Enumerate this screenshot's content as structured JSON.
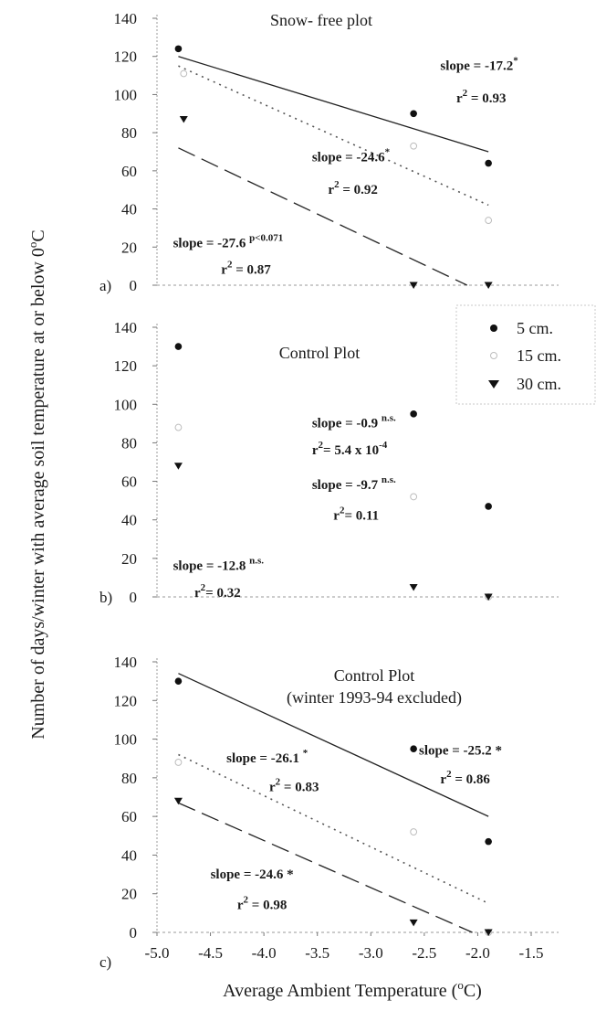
{
  "chart_data": [
    {
      "type": "scatter",
      "panel_letter": "a)",
      "title": "Snow- free plot",
      "ylim": [
        0,
        140
      ],
      "yticks": [
        "0",
        "20",
        "40",
        "60",
        "80",
        "100",
        "120",
        "140"
      ],
      "series": [
        {
          "name": "5 cm.",
          "marker": "circle",
          "x": [
            -4.8,
            -2.6,
            -1.9
          ],
          "y": [
            124,
            90,
            64
          ],
          "fit_line": [
            [
              -4.8,
              120
            ],
            [
              -1.9,
              70
            ]
          ],
          "fit_style": "solid"
        },
        {
          "name": "15 cm.",
          "marker": "hollow-circle",
          "x": [
            -4.75,
            -2.6,
            -1.9
          ],
          "y": [
            111,
            73,
            34
          ],
          "fit_line": [
            [
              -4.8,
              115
            ],
            [
              -1.9,
              42
            ]
          ],
          "fit_style": "dotted"
        },
        {
          "name": "30 cm.",
          "marker": "triangle-down",
          "x": [
            -4.75,
            -2.6,
            -1.9
          ],
          "y": [
            87,
            0,
            0
          ],
          "fit_line": [
            [
              -4.8,
              72
            ],
            [
              -2.1,
              0
            ]
          ],
          "fit_style": "dashed"
        }
      ],
      "annotations": [
        {
          "x": -2.35,
          "y": 113,
          "parts": [
            [
              "slope = -17.2",
              "t"
            ],
            [
              "*",
              "s"
            ]
          ]
        },
        {
          "x": -2.2,
          "y": 96,
          "parts": [
            [
              "r",
              "t"
            ],
            [
              "2",
              "s"
            ],
            [
              " = 0.93",
              "t"
            ]
          ]
        },
        {
          "x": -3.55,
          "y": 65,
          "parts": [
            [
              "slope = -24.6",
              "t"
            ],
            [
              "*",
              "s"
            ]
          ]
        },
        {
          "x": -3.4,
          "y": 48,
          "parts": [
            [
              "r",
              "t"
            ],
            [
              "2",
              "s"
            ],
            [
              " = 0.92",
              "t"
            ]
          ]
        },
        {
          "x": -4.85,
          "y": 20,
          "parts": [
            [
              "slope = -27.6 ",
              "t"
            ],
            [
              "p<0.071",
              "s"
            ]
          ]
        },
        {
          "x": -4.4,
          "y": 6,
          "parts": [
            [
              "r",
              "t"
            ],
            [
              "2",
              "s"
            ],
            [
              " = 0.87",
              "t"
            ]
          ]
        }
      ]
    },
    {
      "type": "scatter",
      "panel_letter": "b)",
      "title": "Control Plot",
      "ylim": [
        0,
        140
      ],
      "yticks": [
        "0",
        "20",
        "40",
        "60",
        "80",
        "100",
        "120",
        "140"
      ],
      "series": [
        {
          "name": "5 cm.",
          "marker": "circle",
          "x": [
            -4.8,
            -2.6,
            -1.9
          ],
          "y": [
            130,
            95,
            47
          ]
        },
        {
          "name": "15 cm.",
          "marker": "hollow-circle",
          "x": [
            -4.8,
            -2.6,
            -1.9
          ],
          "y": [
            88,
            52,
            0
          ]
        },
        {
          "name": "30 cm.",
          "marker": "triangle-down",
          "x": [
            -4.8,
            -2.6,
            -1.9
          ],
          "y": [
            68,
            5,
            0
          ]
        }
      ],
      "annotations": [
        {
          "x": -3.55,
          "y": 88,
          "parts": [
            [
              "slope = -0.9 ",
              "t"
            ],
            [
              "n.s.",
              "s"
            ]
          ]
        },
        {
          "x": -3.55,
          "y": 74,
          "parts": [
            [
              "r",
              "t"
            ],
            [
              "2",
              "s"
            ],
            [
              "= 5.4 x 10",
              "t"
            ],
            [
              "-4",
              "s"
            ]
          ]
        },
        {
          "x": -3.55,
          "y": 56,
          "parts": [
            [
              "slope = -9.7 ",
              "t"
            ],
            [
              "n.s.",
              "s"
            ]
          ]
        },
        {
          "x": -3.35,
          "y": 40,
          "parts": [
            [
              "r",
              "t"
            ],
            [
              "2",
              "s"
            ],
            [
              "= 0.11",
              "t"
            ]
          ]
        },
        {
          "x": -4.85,
          "y": 14,
          "parts": [
            [
              "slope = -12.8 ",
              "t"
            ],
            [
              "n.s.",
              "s"
            ]
          ]
        },
        {
          "x": -4.65,
          "y": 0,
          "parts": [
            [
              "r",
              "t"
            ],
            [
              "2",
              "s"
            ],
            [
              "= 0.32",
              "t"
            ]
          ]
        }
      ]
    },
    {
      "type": "scatter",
      "panel_letter": "c)",
      "title": "Control Plot",
      "subtitle": "(winter 1993-94 excluded)",
      "ylim": [
        0,
        140
      ],
      "yticks": [
        "0",
        "20",
        "40",
        "60",
        "80",
        "100",
        "120",
        "140"
      ],
      "xlim": [
        -5.0,
        -1.5
      ],
      "xticks": [
        "-5.0",
        "-4.5",
        "-4.0",
        "-3.5",
        "-3.0",
        "-2.5",
        "-2.0",
        "-1.5"
      ],
      "xlabel": "Average Ambient Temperature (",
      "xlabel_sup": "o",
      "xlabel_unit": "C)",
      "series": [
        {
          "name": "5 cm.",
          "marker": "circle",
          "x": [
            -4.8,
            -2.6,
            -1.9
          ],
          "y": [
            130,
            95,
            47
          ],
          "fit_line": [
            [
              -4.8,
              134
            ],
            [
              -1.9,
              60
            ]
          ],
          "fit_style": "solid"
        },
        {
          "name": "15 cm.",
          "marker": "hollow-circle",
          "x": [
            -4.8,
            -2.6,
            -1.9
          ],
          "y": [
            88,
            52,
            0
          ],
          "fit_line": [
            [
              -4.8,
              92
            ],
            [
              -1.9,
              15
            ]
          ],
          "fit_style": "dotted"
        },
        {
          "name": "30 cm.",
          "marker": "triangle-down",
          "x": [
            -4.8,
            -2.6,
            -1.9
          ],
          "y": [
            68,
            5,
            0
          ],
          "fit_line": [
            [
              -4.8,
              67
            ],
            [
              -2.05,
              0
            ]
          ],
          "fit_style": "dashed"
        }
      ],
      "annotations": [
        {
          "x": -2.55,
          "y": 92,
          "parts": [
            [
              "slope = -25.2 *",
              "t"
            ]
          ]
        },
        {
          "x": -2.35,
          "y": 77,
          "parts": [
            [
              "r",
              "t"
            ],
            [
              "2",
              "s"
            ],
            [
              " = 0.86",
              "t"
            ]
          ]
        },
        {
          "x": -4.35,
          "y": 88,
          "parts": [
            [
              "slope = -26.1 ",
              "t"
            ],
            [
              "*",
              "s"
            ]
          ]
        },
        {
          "x": -3.95,
          "y": 73,
          "parts": [
            [
              "r",
              "t"
            ],
            [
              "2",
              "s"
            ],
            [
              " = 0.83",
              "t"
            ]
          ]
        },
        {
          "x": -4.5,
          "y": 28,
          "parts": [
            [
              "slope = -24.6 *",
              "t"
            ]
          ]
        },
        {
          "x": -4.25,
          "y": 12,
          "parts": [
            [
              "r",
              "t"
            ],
            [
              "2",
              "s"
            ],
            [
              " = 0.98",
              "t"
            ]
          ]
        }
      ]
    }
  ],
  "ylabel": "Number of days/winter with average soil temperature at or below 0",
  "ylabel_sup": "o",
  "ylabel_unit": "C",
  "legend": {
    "placement": "right of panel b",
    "items": [
      {
        "label": "5 cm.",
        "marker": "circle"
      },
      {
        "label": "15 cm.",
        "marker": "hollow-circle"
      },
      {
        "label": "30 cm.",
        "marker": "triangle-down"
      }
    ]
  }
}
